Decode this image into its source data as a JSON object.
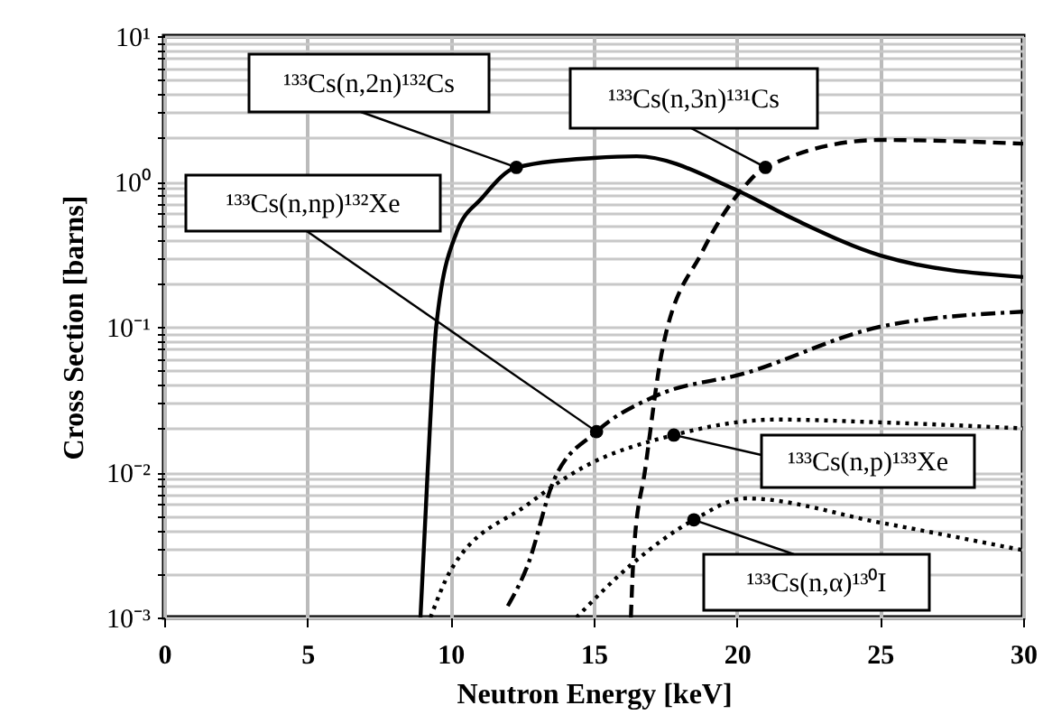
{
  "chart_data": {
    "type": "line",
    "xlabel": "Neutron Energy [keV]",
    "ylabel": "Cross Section [barns]",
    "xlim": [
      0,
      30
    ],
    "xticks": [
      0,
      5,
      10,
      15,
      20,
      25,
      30
    ],
    "ylim": [
      0.001,
      10
    ],
    "log": "y",
    "grid": true,
    "yticks": [
      {
        "value": 0.001,
        "label": "10⁻³"
      },
      {
        "value": 0.002,
        "label": null
      },
      {
        "value": 0.003,
        "label": null
      },
      {
        "value": 0.004,
        "label": null
      },
      {
        "value": 0.005,
        "label": null
      },
      {
        "value": 0.006,
        "label": null
      },
      {
        "value": 0.007,
        "label": null
      },
      {
        "value": 0.008,
        "label": null
      },
      {
        "value": 0.009,
        "label": null
      },
      {
        "value": 0.01,
        "label": "10⁻²"
      },
      {
        "value": 0.02,
        "label": null
      },
      {
        "value": 0.03,
        "label": null
      },
      {
        "value": 0.04,
        "label": null
      },
      {
        "value": 0.05,
        "label": null
      },
      {
        "value": 0.06,
        "label": null
      },
      {
        "value": 0.07,
        "label": null
      },
      {
        "value": 0.08,
        "label": null
      },
      {
        "value": 0.09,
        "label": null
      },
      {
        "value": 0.1,
        "label": "10⁻¹"
      },
      {
        "value": 0.2,
        "label": null
      },
      {
        "value": 0.3,
        "label": null
      },
      {
        "value": 0.4,
        "label": null
      },
      {
        "value": 0.5,
        "label": null
      },
      {
        "value": 0.6,
        "label": null
      },
      {
        "value": 0.7,
        "label": null
      },
      {
        "value": 0.8,
        "label": null
      },
      {
        "value": 0.9,
        "label": null
      },
      {
        "value": 1,
        "label": "10⁰"
      },
      {
        "value": 2,
        "label": null
      },
      {
        "value": 3,
        "label": null
      },
      {
        "value": 4,
        "label": null
      },
      {
        "value": 5,
        "label": null
      },
      {
        "value": 6,
        "label": null
      },
      {
        "value": 7,
        "label": null
      },
      {
        "value": 8,
        "label": null
      },
      {
        "value": 9,
        "label": null
      },
      {
        "value": 10,
        "label": "10¹"
      }
    ],
    "series": [
      {
        "color": "#000000",
        "line_style": "solid",
        "x": [
          8.95,
          9.2,
          9.5,
          10.2,
          11.1,
          12.3,
          15,
          16.5,
          19.9,
          22,
          25,
          30
        ],
        "values": [
          0.001,
          0.01,
          0.1,
          0.44,
          0.77,
          1.25,
          1.45,
          1.49,
          0.89,
          0.55,
          0.31,
          0.22
        ]
      },
      {
        "color": "#000000",
        "line_style": "dashed",
        "x": [
          16.3,
          16.4,
          16.8,
          17.4,
          18.8,
          20.3,
          21,
          25,
          30
        ],
        "values": [
          0.001,
          0.0028,
          0.0105,
          0.07,
          0.33,
          0.94,
          1.25,
          1.93,
          1.82
        ]
      },
      {
        "color": "#000000",
        "line_style": "dashdot",
        "x": [
          12,
          12.7,
          13.6,
          15.1,
          17.1,
          20.3,
          25,
          30
        ],
        "values": [
          0.0012,
          0.0023,
          0.0087,
          0.019,
          0.033,
          0.048,
          0.1,
          0.127
        ]
      },
      {
        "color": "#000000",
        "line_style": "dotted",
        "x": [
          9.3,
          10,
          12.7,
          14.6,
          17.8,
          21.4,
          25,
          30
        ],
        "values": [
          0.001,
          0.0021,
          0.006,
          0.0107,
          0.018,
          0.023,
          0.022,
          0.02
        ]
      },
      {
        "color": "#000000",
        "line_style": "dotted",
        "x": [
          14.4,
          16.3,
          18.5,
          20.3,
          25,
          30
        ],
        "values": [
          0.001,
          0.0023,
          0.0047,
          0.0066,
          0.0045,
          0.0029
        ]
      }
    ],
    "annotations": [
      {
        "text": "¹³³Cs(n,2n)¹³²Cs",
        "x": 12.3,
        "y": 1.25
      },
      {
        "text": "¹³³Cs(n,3n)¹³¹Cs",
        "x": 21,
        "y": 1.25
      },
      {
        "text": "¹³³Cs(n,np)¹³²Xe",
        "x": 15.1,
        "y": 0.019
      },
      {
        "text": "¹³³Cs(n,p)¹³³Xe",
        "x": 17.8,
        "y": 0.018
      },
      {
        "text": "¹³³Cs(n,α)¹³⁰I",
        "x": 18.5,
        "y": 0.0047
      }
    ]
  }
}
